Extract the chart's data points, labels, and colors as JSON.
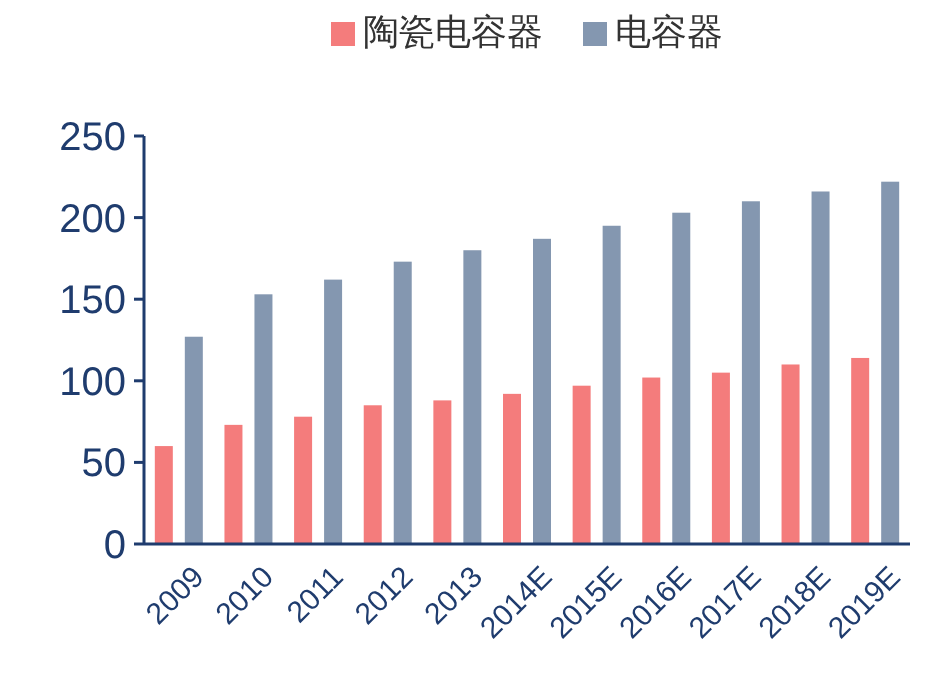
{
  "chart_data": {
    "type": "bar",
    "categories": [
      "2009",
      "2010",
      "2011",
      "2012",
      "2013",
      "2014E",
      "2015E",
      "2016E",
      "2017E",
      "2018E",
      "2019E"
    ],
    "series": [
      {
        "name": "陶瓷电容器",
        "color": "#f47c7c",
        "values": [
          60,
          73,
          78,
          85,
          88,
          92,
          97,
          102,
          105,
          110,
          114
        ]
      },
      {
        "name": "电容器",
        "color": "#8497b0",
        "values": [
          127,
          153,
          162,
          173,
          180,
          187,
          195,
          203,
          210,
          216,
          222
        ]
      }
    ],
    "ylim": [
      0,
      250
    ],
    "yticks": [
      0,
      50,
      100,
      150,
      200,
      250
    ],
    "grid": false,
    "legend": "top"
  }
}
